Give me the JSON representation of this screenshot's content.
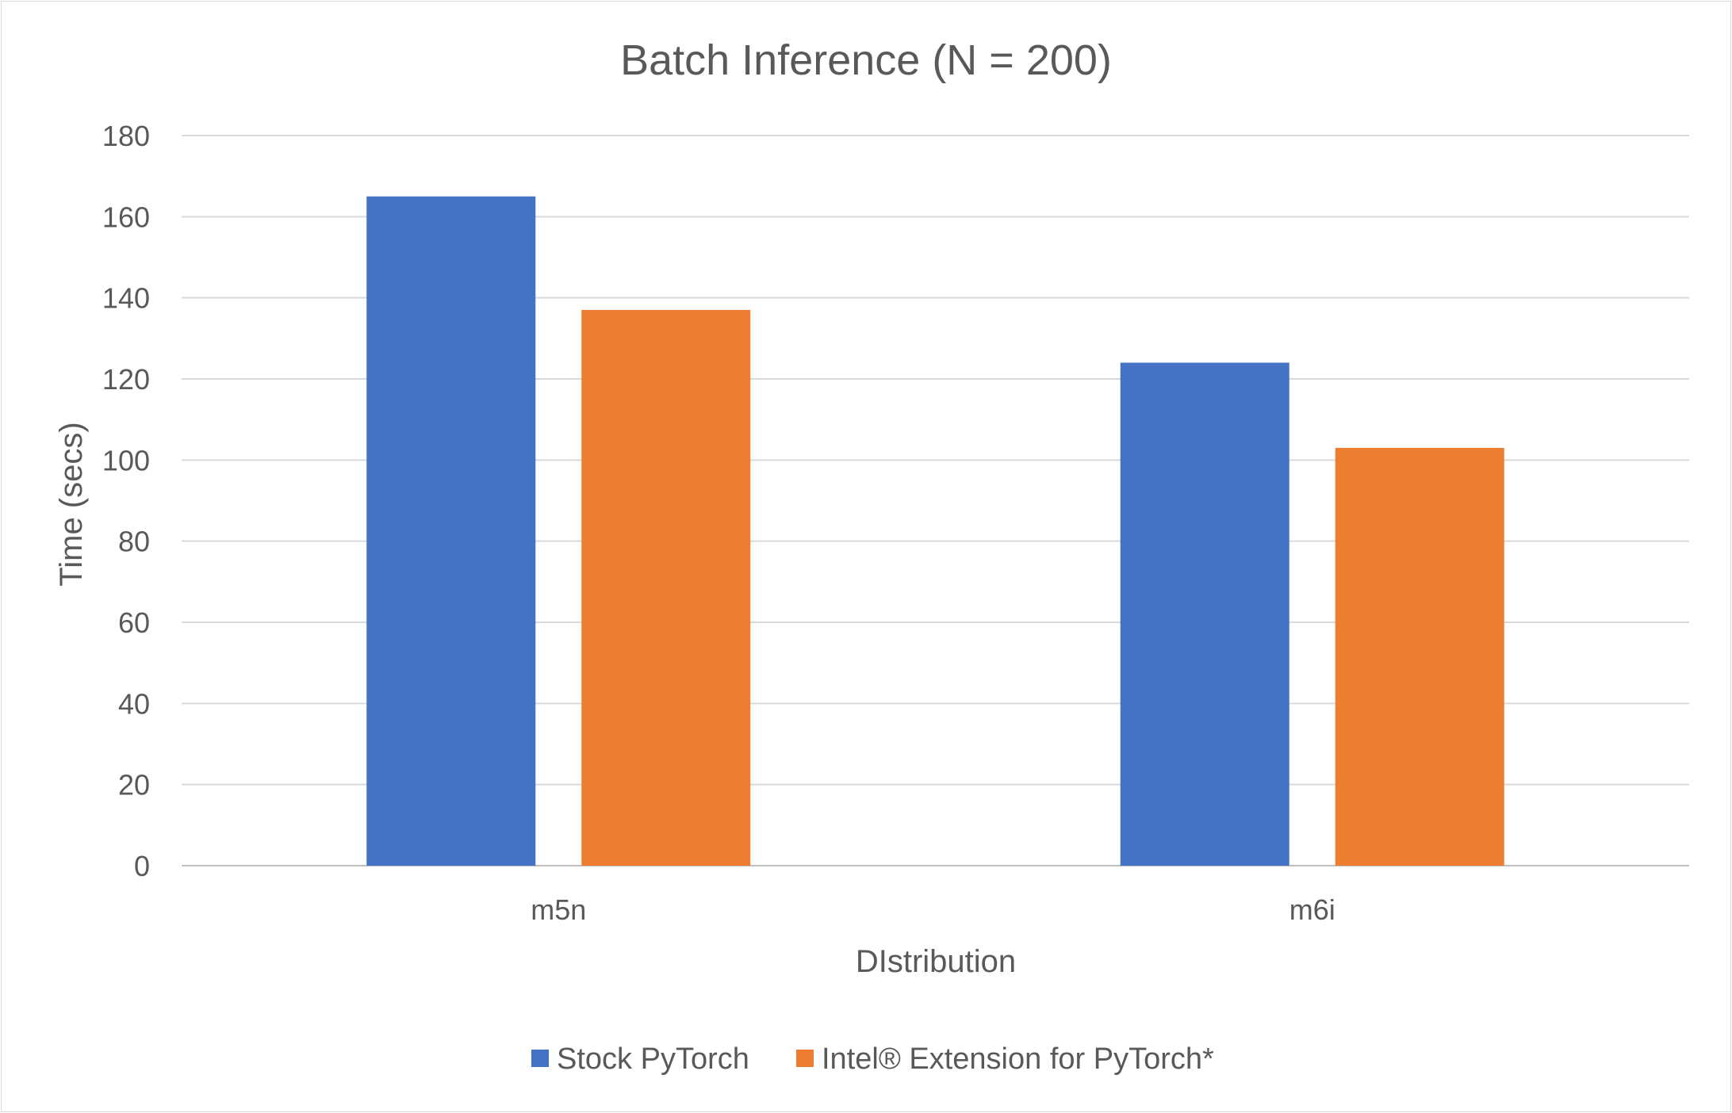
{
  "chart_data": {
    "type": "bar",
    "title": "Batch Inference (N = 200)",
    "xlabel": "DIstribution",
    "ylabel": "Time (secs)",
    "categories": [
      "m5n",
      "m6i"
    ],
    "series": [
      {
        "name": "Stock PyTorch",
        "values": [
          165,
          124
        ],
        "color": "#4472C4"
      },
      {
        "name": "Intel® Extension for PyTorch*",
        "values": [
          137,
          103
        ],
        "color": "#ED7D31"
      }
    ],
    "ylim": [
      0,
      180
    ],
    "yticks": [
      0,
      20,
      40,
      60,
      80,
      100,
      120,
      140,
      160,
      180
    ],
    "grid": true,
    "legend_position": "bottom"
  }
}
